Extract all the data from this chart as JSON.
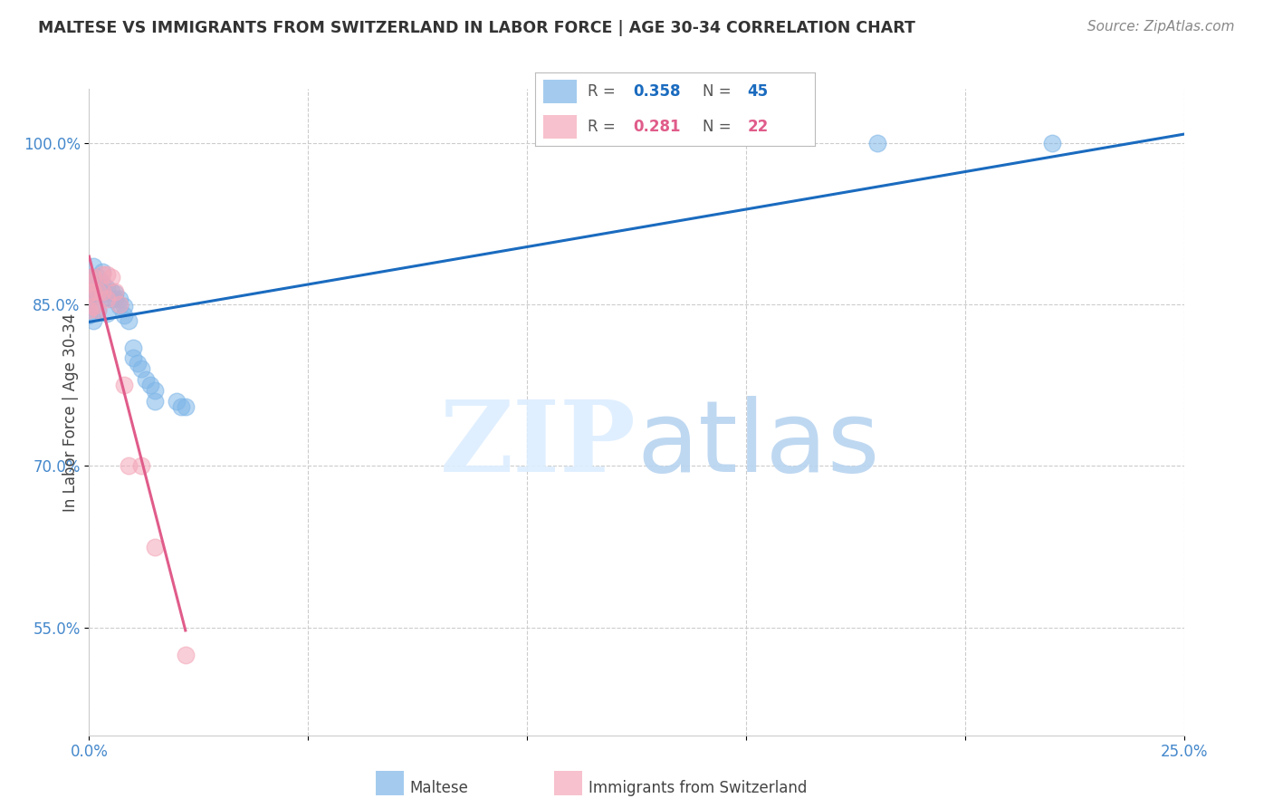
{
  "title": "MALTESE VS IMMIGRANTS FROM SWITZERLAND IN LABOR FORCE | AGE 30-34 CORRELATION CHART",
  "source": "Source: ZipAtlas.com",
  "ylabel": "In Labor Force | Age 30-34",
  "xlim": [
    0.0,
    0.25
  ],
  "ylim": [
    0.45,
    1.05
  ],
  "yticks": [
    0.55,
    0.7,
    0.85,
    1.0
  ],
  "yticklabels": [
    "55.0%",
    "70.0%",
    "85.0%",
    "100.0%"
  ],
  "xtick_positions": [
    0.0,
    0.05,
    0.1,
    0.15,
    0.2,
    0.25
  ],
  "xtick_labels": [
    "0.0%",
    "",
    "",
    "",
    "",
    "25.0%"
  ],
  "blue_R": 0.358,
  "blue_N": 45,
  "pink_R": 0.281,
  "pink_N": 22,
  "blue_color": "#7eb6e8",
  "pink_color": "#f4a7b9",
  "blue_line_color": "#1a6bbf",
  "pink_line_color": "#e05c8a",
  "background_color": "#ffffff",
  "blue_scatter_x": [
    0.0,
    0.0,
    0.0,
    0.0,
    0.0,
    0.001,
    0.001,
    0.001,
    0.001,
    0.001,
    0.001,
    0.002,
    0.002,
    0.002,
    0.002,
    0.003,
    0.003,
    0.003,
    0.004,
    0.004,
    0.004,
    0.005,
    0.005,
    0.006,
    0.006,
    0.007,
    0.007,
    0.008,
    0.008,
    0.009,
    0.01,
    0.01,
    0.011,
    0.012,
    0.013,
    0.014,
    0.015,
    0.015,
    0.02,
    0.021,
    0.022,
    0.18,
    0.22
  ],
  "blue_scatter_y": [
    0.875,
    0.87,
    0.865,
    0.855,
    0.84,
    0.885,
    0.875,
    0.865,
    0.86,
    0.85,
    0.835,
    0.875,
    0.87,
    0.86,
    0.845,
    0.88,
    0.87,
    0.86,
    0.865,
    0.857,
    0.842,
    0.862,
    0.855,
    0.86,
    0.855,
    0.855,
    0.848,
    0.848,
    0.84,
    0.835,
    0.81,
    0.8,
    0.795,
    0.79,
    0.78,
    0.775,
    0.77,
    0.76,
    0.76,
    0.755,
    0.755,
    1.0,
    1.0
  ],
  "pink_scatter_x": [
    0.0,
    0.0,
    0.0,
    0.0,
    0.001,
    0.001,
    0.001,
    0.002,
    0.002,
    0.003,
    0.003,
    0.004,
    0.004,
    0.005,
    0.006,
    0.007,
    0.008,
    0.009,
    0.012,
    0.015,
    0.022
  ],
  "pink_scatter_y": [
    0.875,
    0.87,
    0.86,
    0.845,
    0.875,
    0.862,
    0.848,
    0.862,
    0.845,
    0.878,
    0.862,
    0.878,
    0.855,
    0.875,
    0.862,
    0.85,
    0.775,
    0.7,
    0.7,
    0.625,
    0.525
  ]
}
